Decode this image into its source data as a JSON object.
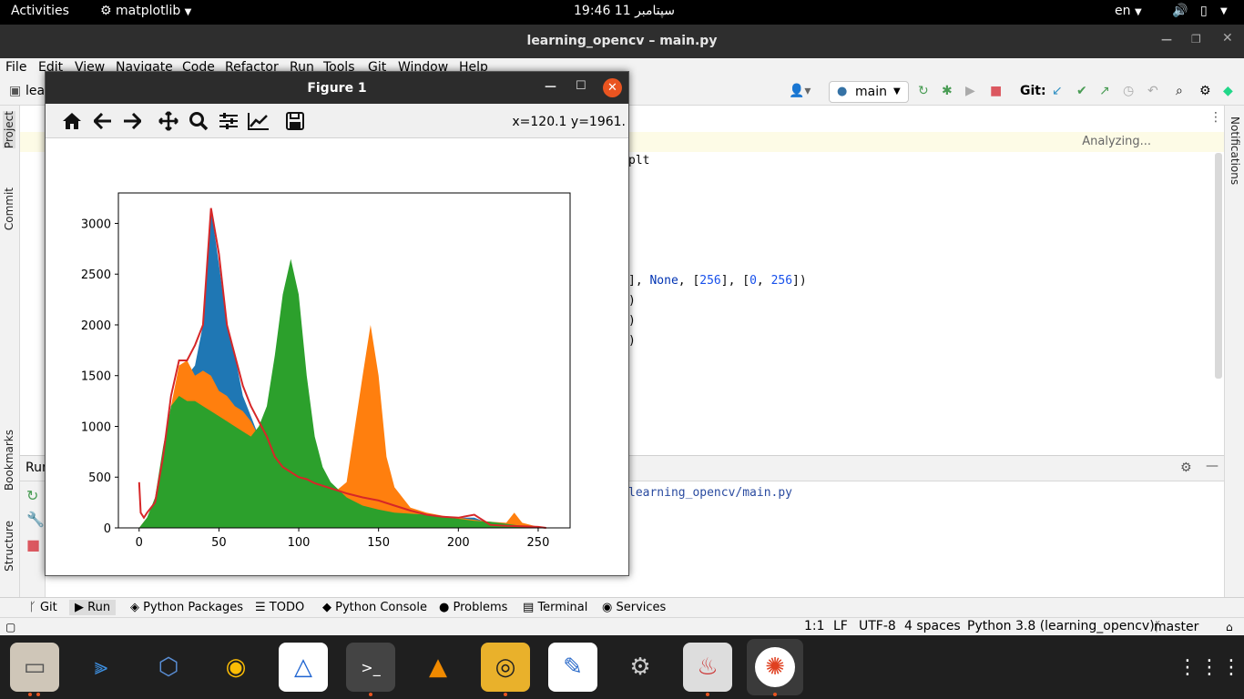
{
  "topbar": {
    "activities": "Activities",
    "app_menu": "matplotlib",
    "clock": "19:46  سپتامبر 11",
    "lang": "en"
  },
  "ide": {
    "title": "learning_opencv – main.py",
    "menu": [
      "File",
      "Edit",
      "View",
      "Navigate",
      "Code",
      "Refactor",
      "Run",
      "Tools",
      "Git",
      "Window",
      "Help"
    ],
    "project_crumb": "lea",
    "run_config": "main",
    "git_label": "Git:",
    "analyzing": "Analyzing...",
    "left_tabs": [
      "Project",
      "Commit",
      "Bookmarks",
      "Structure"
    ],
    "right_tabs": [
      "Notifications"
    ],
    "code_lines": {
      "l1": "plt",
      "l2_a": "], ",
      "l2_none": "None",
      "l2_b": ", [",
      "l2_n1": "256",
      "l2_c": "], [",
      "l2_n2": "0",
      "l2_d": ", ",
      "l2_n3": "256",
      "l2_e": "])",
      "l3": ")",
      "l4": ")",
      "l5": ")"
    },
    "run_label": "Run",
    "run_path": "learning_opencv/main.py",
    "tool_windows": [
      "Git",
      "Run",
      "Python Packages",
      "TODO",
      "Python Console",
      "Problems",
      "Terminal",
      "Services"
    ],
    "status": {
      "pos": "1:1",
      "lf": "LF",
      "enc": "UTF-8",
      "indent": "4 spaces",
      "interp": "Python 3.8 (learning_opencv)",
      "branch": "master"
    }
  },
  "figure": {
    "title": "Figure 1",
    "coords": "x=120.1 y=1961."
  },
  "chart_data": {
    "type": "area",
    "title": "",
    "xlabel": "",
    "ylabel": "",
    "xlim": [
      -13,
      270
    ],
    "ylim": [
      0,
      3300
    ],
    "xticks": [
      "0",
      "50",
      "100",
      "150",
      "200",
      "250"
    ],
    "xtick_values": [
      0,
      50,
      100,
      150,
      200,
      250
    ],
    "yticks": [
      "0",
      "500",
      "1000",
      "1500",
      "2000",
      "2500",
      "3000"
    ],
    "ytick_values": [
      0,
      500,
      1000,
      1500,
      2000,
      2500,
      3000
    ],
    "series": [
      {
        "style": "histogram",
        "color": "#1f77b4",
        "x": [
          0,
          5,
          10,
          15,
          20,
          25,
          30,
          35,
          40,
          45,
          50,
          55,
          60,
          65,
          70,
          75,
          80,
          85,
          90,
          95,
          100,
          105,
          110,
          120,
          130,
          140,
          150,
          160,
          170,
          180,
          190,
          200,
          210,
          220,
          230,
          240,
          250,
          255
        ],
        "values": [
          0,
          100,
          200,
          400,
          800,
          1300,
          1500,
          1600,
          2000,
          3150,
          2600,
          2000,
          1700,
          1300,
          1100,
          900,
          800,
          650,
          600,
          550,
          500,
          450,
          420,
          380,
          340,
          300,
          260,
          220,
          180,
          140,
          110,
          100,
          100,
          40,
          30,
          20,
          10,
          0
        ]
      },
      {
        "style": "histogram",
        "color": "#ff7f0e",
        "x": [
          0,
          5,
          10,
          15,
          20,
          25,
          30,
          35,
          40,
          45,
          50,
          55,
          60,
          65,
          70,
          75,
          80,
          85,
          90,
          95,
          100,
          105,
          110,
          120,
          130,
          140,
          145,
          150,
          155,
          160,
          170,
          180,
          190,
          200,
          210,
          220,
          230,
          235,
          240,
          250,
          255
        ],
        "values": [
          0,
          100,
          250,
          600,
          1200,
          1600,
          1650,
          1500,
          1550,
          1500,
          1350,
          1300,
          1200,
          1150,
          1050,
          900,
          800,
          650,
          550,
          450,
          400,
          350,
          330,
          320,
          450,
          1500,
          2000,
          1500,
          700,
          400,
          200,
          150,
          120,
          100,
          80,
          60,
          50,
          150,
          50,
          10,
          0
        ]
      },
      {
        "style": "histogram",
        "color": "#2ca02c",
        "x": [
          0,
          5,
          10,
          15,
          20,
          25,
          30,
          35,
          40,
          45,
          50,
          55,
          60,
          65,
          70,
          75,
          80,
          85,
          90,
          95,
          100,
          105,
          110,
          115,
          120,
          130,
          140,
          150,
          160,
          170,
          180,
          190,
          200,
          210,
          220,
          230,
          240,
          250,
          255
        ],
        "values": [
          0,
          100,
          300,
          800,
          1200,
          1300,
          1250,
          1250,
          1200,
          1150,
          1100,
          1050,
          1000,
          950,
          900,
          1000,
          1200,
          1700,
          2300,
          2650,
          2300,
          1500,
          900,
          600,
          450,
          300,
          220,
          180,
          150,
          140,
          130,
          110,
          90,
          70,
          60,
          40,
          20,
          10,
          0
        ]
      },
      {
        "style": "line",
        "color": "#d62728",
        "x": [
          0,
          1,
          3,
          5,
          10,
          15,
          20,
          25,
          30,
          35,
          40,
          45,
          50,
          55,
          60,
          65,
          70,
          75,
          80,
          85,
          90,
          95,
          100,
          105,
          110,
          120,
          130,
          140,
          150,
          160,
          170,
          180,
          190,
          200,
          210,
          220,
          230,
          240,
          250,
          255
        ],
        "values": [
          450,
          150,
          100,
          150,
          250,
          700,
          1300,
          1650,
          1650,
          1800,
          2000,
          3150,
          2700,
          2000,
          1700,
          1400,
          1200,
          1050,
          900,
          700,
          600,
          550,
          500,
          480,
          440,
          390,
          340,
          300,
          270,
          220,
          170,
          130,
          110,
          100,
          130,
          30,
          20,
          15,
          10,
          0
        ]
      }
    ]
  }
}
